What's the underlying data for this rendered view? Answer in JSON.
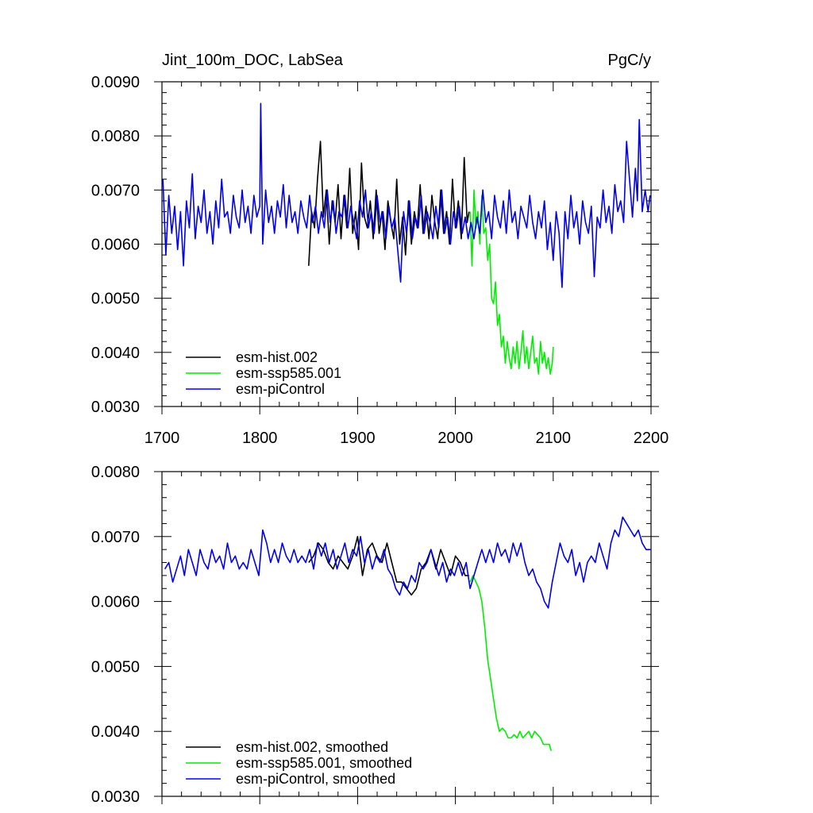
{
  "chart_data": [
    {
      "type": "line",
      "title_left": "Jint_100m_DOC, LabSea",
      "title_right": "PgC/y",
      "xlabel": "",
      "ylabel": "",
      "xlim": [
        1700,
        2200
      ],
      "ylim": [
        0.003,
        0.009
      ],
      "x_ticks": [
        1700,
        1800,
        1900,
        2000,
        2100,
        2200
      ],
      "x_tick_labels": [
        "1700",
        "1800",
        "1900",
        "2000",
        "2100",
        "2200"
      ],
      "y_ticks": [
        0.003,
        0.004,
        0.005,
        0.006,
        0.007,
        0.008,
        0.009
      ],
      "y_tick_labels": [
        "0.0030",
        "0.0040",
        "0.0050",
        "0.0060",
        "0.0070",
        "0.0080",
        "0.0090"
      ],
      "legend_position": "bottom-left",
      "series": [
        {
          "name": "esm-hist.002",
          "color": "#000000",
          "x": [
            1850,
            1853,
            1856,
            1859,
            1862,
            1865,
            1868,
            1871,
            1874,
            1877,
            1880,
            1883,
            1886,
            1889,
            1892,
            1895,
            1898,
            1901,
            1904,
            1907,
            1910,
            1913,
            1916,
            1919,
            1922,
            1925,
            1928,
            1931,
            1934,
            1937,
            1940,
            1943,
            1946,
            1949,
            1952,
            1955,
            1958,
            1961,
            1964,
            1967,
            1970,
            1973,
            1976,
            1979,
            1982,
            1985,
            1988,
            1991,
            1994,
            1997,
            2000,
            2003,
            2006,
            2009,
            2012,
            2014
          ],
          "y": [
            0.0056,
            0.0066,
            0.0063,
            0.0072,
            0.0079,
            0.0065,
            0.007,
            0.006,
            0.0068,
            0.0064,
            0.0071,
            0.0061,
            0.0069,
            0.0063,
            0.0074,
            0.0062,
            0.0066,
            0.0059,
            0.0075,
            0.0065,
            0.0063,
            0.0068,
            0.0061,
            0.007,
            0.0062,
            0.0066,
            0.0059,
            0.0068,
            0.0064,
            0.0061,
            0.0072,
            0.006,
            0.0065,
            0.0058,
            0.0068,
            0.006,
            0.0066,
            0.0063,
            0.0071,
            0.0062,
            0.0067,
            0.0061,
            0.0069,
            0.0064,
            0.0061,
            0.007,
            0.0062,
            0.0066,
            0.006,
            0.0072,
            0.0063,
            0.0068,
            0.0061,
            0.0076,
            0.0064,
            0.0066
          ]
        },
        {
          "name": "esm-ssp585.001",
          "color": "#00ee00",
          "x": [
            2015,
            2017,
            2019,
            2021,
            2023,
            2025,
            2027,
            2029,
            2031,
            2033,
            2035,
            2037,
            2039,
            2041,
            2043,
            2045,
            2047,
            2049,
            2051,
            2053,
            2055,
            2057,
            2059,
            2061,
            2063,
            2065,
            2067,
            2069,
            2071,
            2073,
            2075,
            2077,
            2079,
            2081,
            2083,
            2085,
            2087,
            2089,
            2091,
            2093,
            2095,
            2097,
            2099,
            2100
          ],
          "y": [
            0.0066,
            0.0056,
            0.007,
            0.0063,
            0.0066,
            0.006,
            0.0069,
            0.0062,
            0.0063,
            0.0057,
            0.006,
            0.005,
            0.0049,
            0.0053,
            0.0045,
            0.0047,
            0.0041,
            0.0043,
            0.0038,
            0.0042,
            0.0039,
            0.0037,
            0.0041,
            0.0038,
            0.0042,
            0.0037,
            0.004,
            0.0044,
            0.0038,
            0.0041,
            0.0037,
            0.004,
            0.0043,
            0.0038,
            0.0039,
            0.0036,
            0.0042,
            0.0038,
            0.004,
            0.0037,
            0.0039,
            0.0036,
            0.0038,
            0.0041
          ]
        },
        {
          "name": "esm-piControl",
          "color": "#0000ee",
          "x": [
            1701,
            1704,
            1707,
            1710,
            1713,
            1716,
            1719,
            1722,
            1725,
            1728,
            1731,
            1734,
            1737,
            1740,
            1743,
            1746,
            1749,
            1752,
            1755,
            1758,
            1761,
            1764,
            1767,
            1770,
            1773,
            1776,
            1779,
            1782,
            1785,
            1788,
            1791,
            1794,
            1797,
            1800,
            1801,
            1803,
            1806,
            1809,
            1812,
            1815,
            1818,
            1821,
            1824,
            1827,
            1830,
            1833,
            1836,
            1839,
            1842,
            1845,
            1848,
            1851,
            1854,
            1857,
            1860,
            1863,
            1866,
            1869,
            1872,
            1875,
            1878,
            1881,
            1884,
            1887,
            1890,
            1893,
            1896,
            1899,
            1902,
            1905,
            1908,
            1911,
            1914,
            1917,
            1920,
            1923,
            1926,
            1929,
            1932,
            1935,
            1938,
            1941,
            1944,
            1947,
            1950,
            1953,
            1956,
            1959,
            1962,
            1965,
            1968,
            1971,
            1974,
            1977,
            1980,
            1983,
            1986,
            1989,
            1992,
            1995,
            1998,
            2001,
            2004,
            2007,
            2010,
            2013,
            2016,
            2019,
            2022,
            2025,
            2028,
            2031,
            2034,
            2037,
            2040,
            2043,
            2046,
            2049,
            2052,
            2055,
            2058,
            2061,
            2064,
            2067,
            2070,
            2073,
            2076,
            2079,
            2082,
            2085,
            2088,
            2091,
            2094,
            2097,
            2100,
            2103,
            2106,
            2109,
            2112,
            2115,
            2118,
            2121,
            2124,
            2127,
            2130,
            2133,
            2136,
            2139,
            2142,
            2145,
            2148,
            2151,
            2154,
            2157,
            2160,
            2163,
            2166,
            2169,
            2172,
            2175,
            2178,
            2181,
            2184,
            2186,
            2188,
            2191,
            2194,
            2197,
            2199
          ],
          "y": [
            0.0072,
            0.0058,
            0.0069,
            0.0062,
            0.0067,
            0.0059,
            0.0066,
            0.0056,
            0.0068,
            0.0063,
            0.0073,
            0.0061,
            0.0067,
            0.0064,
            0.007,
            0.0062,
            0.0066,
            0.006,
            0.0068,
            0.0063,
            0.0072,
            0.0065,
            0.0066,
            0.0062,
            0.0069,
            0.0065,
            0.0063,
            0.007,
            0.0064,
            0.0067,
            0.0062,
            0.0069,
            0.0065,
            0.0067,
            0.0086,
            0.006,
            0.007,
            0.0064,
            0.0067,
            0.0062,
            0.0068,
            0.0065,
            0.0071,
            0.0063,
            0.0069,
            0.0064,
            0.0066,
            0.0062,
            0.0068,
            0.0065,
            0.0063,
            0.0069,
            0.0064,
            0.0067,
            0.0062,
            0.0066,
            0.0063,
            0.007,
            0.0064,
            0.0068,
            0.0062,
            0.0066,
            0.0065,
            0.0069,
            0.0063,
            0.0067,
            0.0064,
            0.0061,
            0.0068,
            0.0065,
            0.007,
            0.0063,
            0.0066,
            0.0062,
            0.0069,
            0.0064,
            0.0066,
            0.0061,
            0.0067,
            0.0063,
            0.0065,
            0.0059,
            0.0053,
            0.0066,
            0.0062,
            0.0068,
            0.0061,
            0.0065,
            0.0063,
            0.0069,
            0.0062,
            0.0066,
            0.0064,
            0.0061,
            0.0067,
            0.0063,
            0.007,
            0.0062,
            0.0065,
            0.006,
            0.0066,
            0.0063,
            0.0067,
            0.0062,
            0.0065,
            0.0061,
            0.0064,
            0.0061,
            0.0065,
            0.0062,
            0.007,
            0.0064,
            0.0066,
            0.0061,
            0.0069,
            0.0065,
            0.0063,
            0.0068,
            0.0062,
            0.007,
            0.0064,
            0.0066,
            0.0061,
            0.0067,
            0.0065,
            0.0063,
            0.0069,
            0.0064,
            0.0061,
            0.0066,
            0.0063,
            0.0068,
            0.0059,
            0.0064,
            0.0057,
            0.0066,
            0.0062,
            0.0052,
            0.0066,
            0.0061,
            0.0069,
            0.0063,
            0.0066,
            0.006,
            0.0068,
            0.0064,
            0.0062,
            0.0067,
            0.0054,
            0.0065,
            0.0063,
            0.007,
            0.0064,
            0.0067,
            0.0062,
            0.0071,
            0.0066,
            0.0068,
            0.0064,
            0.0079,
            0.0072,
            0.0065,
            0.0074,
            0.0068,
            0.0083,
            0.0066,
            0.007,
            0.0066,
            0.0069
          ]
        }
      ]
    },
    {
      "type": "line",
      "xlabel": "",
      "ylabel": "",
      "xlim": [
        1700,
        2200
      ],
      "ylim": [
        0.003,
        0.008
      ],
      "x_ticks": [
        1700,
        1800,
        1900,
        2000,
        2100,
        2200
      ],
      "y_ticks": [
        0.003,
        0.004,
        0.005,
        0.006,
        0.007,
        0.008
      ],
      "y_tick_labels": [
        "0.0030",
        "0.0040",
        "0.0050",
        "0.0060",
        "0.0070",
        "0.0080"
      ],
      "legend_position": "bottom-left",
      "series": [
        {
          "name": "esm-hist.002, smoothed",
          "color": "#000000",
          "x": [
            1850,
            1855,
            1860,
            1865,
            1870,
            1875,
            1880,
            1885,
            1890,
            1895,
            1900,
            1905,
            1910,
            1915,
            1920,
            1925,
            1930,
            1935,
            1940,
            1945,
            1950,
            1955,
            1960,
            1965,
            1970,
            1975,
            1980,
            1985,
            1990,
            1995,
            2000,
            2005,
            2010,
            2014
          ],
          "y": [
            0.0066,
            0.0067,
            0.0069,
            0.0068,
            0.0066,
            0.0065,
            0.0067,
            0.0066,
            0.0065,
            0.0067,
            0.007,
            0.0064,
            0.0068,
            0.0069,
            0.0067,
            0.0066,
            0.0069,
            0.0066,
            0.0063,
            0.0063,
            0.0062,
            0.0061,
            0.0062,
            0.0065,
            0.0066,
            0.0068,
            0.0065,
            0.0068,
            0.0066,
            0.0064,
            0.0067,
            0.0066,
            0.0064,
            0.0064
          ]
        },
        {
          "name": "esm-ssp585.001, smoothed",
          "color": "#00ee00",
          "x": [
            2015,
            2018,
            2021,
            2024,
            2027,
            2030,
            2033,
            2036,
            2039,
            2042,
            2045,
            2048,
            2051,
            2054,
            2057,
            2060,
            2063,
            2066,
            2069,
            2072,
            2075,
            2078,
            2081,
            2084,
            2087,
            2090,
            2093,
            2096,
            2098
          ],
          "y": [
            0.0063,
            0.0064,
            0.0063,
            0.0062,
            0.006,
            0.0056,
            0.0051,
            0.0048,
            0.0045,
            0.0042,
            0.004,
            0.00405,
            0.004,
            0.0039,
            0.0039,
            0.00395,
            0.0039,
            0.004,
            0.0039,
            0.00395,
            0.004,
            0.0039,
            0.004,
            0.00395,
            0.0039,
            0.0038,
            0.0038,
            0.0038,
            0.0037
          ]
        },
        {
          "name": "esm-piControl, smoothed",
          "color": "#0000ee",
          "x": [
            1703,
            1707,
            1711,
            1715,
            1719,
            1723,
            1727,
            1731,
            1735,
            1739,
            1743,
            1747,
            1751,
            1755,
            1759,
            1763,
            1767,
            1771,
            1775,
            1779,
            1783,
            1787,
            1791,
            1795,
            1799,
            1803,
            1807,
            1811,
            1815,
            1819,
            1823,
            1827,
            1831,
            1835,
            1839,
            1843,
            1847,
            1851,
            1855,
            1859,
            1863,
            1867,
            1871,
            1875,
            1879,
            1883,
            1887,
            1891,
            1895,
            1899,
            1903,
            1907,
            1911,
            1915,
            1919,
            1923,
            1927,
            1931,
            1935,
            1939,
            1943,
            1947,
            1951,
            1955,
            1959,
            1963,
            1967,
            1971,
            1975,
            1979,
            1983,
            1987,
            1991,
            1995,
            1999,
            2003,
            2007,
            2011,
            2015,
            2019,
            2023,
            2027,
            2031,
            2035,
            2039,
            2043,
            2047,
            2051,
            2055,
            2059,
            2063,
            2067,
            2071,
            2075,
            2079,
            2083,
            2087,
            2091,
            2095,
            2099,
            2103,
            2107,
            2111,
            2115,
            2119,
            2123,
            2127,
            2131,
            2135,
            2139,
            2143,
            2147,
            2151,
            2155,
            2159,
            2163,
            2167,
            2171,
            2175,
            2179,
            2183,
            2187,
            2191,
            2195,
            2199
          ],
          "y": [
            0.0065,
            0.0066,
            0.0063,
            0.0065,
            0.0067,
            0.0064,
            0.0068,
            0.0066,
            0.0064,
            0.0068,
            0.0066,
            0.0065,
            0.0068,
            0.0066,
            0.0067,
            0.0065,
            0.0069,
            0.0066,
            0.0067,
            0.0065,
            0.0066,
            0.0065,
            0.0068,
            0.0066,
            0.0064,
            0.0071,
            0.0069,
            0.0066,
            0.0068,
            0.0066,
            0.0069,
            0.0067,
            0.0066,
            0.0068,
            0.0066,
            0.0067,
            0.0066,
            0.0068,
            0.0065,
            0.0069,
            0.0067,
            0.0069,
            0.0066,
            0.0068,
            0.0065,
            0.0067,
            0.0069,
            0.0066,
            0.0068,
            0.0067,
            0.007,
            0.0066,
            0.0068,
            0.0065,
            0.0067,
            0.0066,
            0.0068,
            0.0065,
            0.0064,
            0.0062,
            0.0061,
            0.0063,
            0.0062,
            0.0064,
            0.0063,
            0.0066,
            0.0065,
            0.0066,
            0.0068,
            0.0066,
            0.0064,
            0.0066,
            0.0063,
            0.0065,
            0.0064,
            0.0066,
            0.0064,
            0.0066,
            0.0062,
            0.0064,
            0.0066,
            0.0068,
            0.0066,
            0.0068,
            0.0066,
            0.0069,
            0.0067,
            0.0068,
            0.0066,
            0.0069,
            0.0067,
            0.0069,
            0.0066,
            0.0064,
            0.0065,
            0.0063,
            0.0062,
            0.006,
            0.0059,
            0.0063,
            0.0066,
            0.0069,
            0.0067,
            0.0066,
            0.0068,
            0.0064,
            0.0066,
            0.0063,
            0.0066,
            0.0067,
            0.0066,
            0.0069,
            0.0067,
            0.0065,
            0.0069,
            0.0071,
            0.007,
            0.0073,
            0.0072,
            0.0071,
            0.007,
            0.0071,
            0.0069,
            0.0068,
            0.0068
          ]
        }
      ]
    }
  ]
}
